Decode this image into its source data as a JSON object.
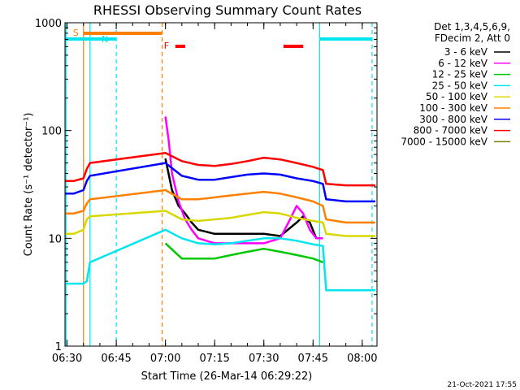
{
  "chart_data": {
    "type": "line",
    "title": "RHESSI Observing Summary Count Rates",
    "xlabel": "Start Time (26-Mar-14 06:29:22)",
    "ylabel": "Count Rate (s⁻¹ detector⁻¹)",
    "y_scale": "log",
    "ylim": [
      1,
      1000
    ],
    "xlim": [
      "06:29:22",
      "08:04:30"
    ],
    "x_ticks": [
      "06:30",
      "06:45",
      "07:00",
      "07:15",
      "07:30",
      "07:45",
      "08:00"
    ],
    "y_ticks": [
      "1",
      "10",
      "100",
      "1000"
    ],
    "grid": false,
    "legend_position": "right",
    "legend_header": [
      "Det 1,3,4,5,6,9,",
      "FDecim 2, Att 0"
    ],
    "series": [
      {
        "name": "3 - 6 keV",
        "color": "#000000",
        "points": [
          [
            "07:00",
            55
          ],
          [
            "07:02",
            28
          ],
          [
            "07:04",
            20
          ],
          [
            "07:06",
            17
          ],
          [
            "07:08",
            14
          ],
          [
            "07:10",
            12
          ],
          [
            "07:15",
            11
          ],
          [
            "07:20",
            11
          ],
          [
            "07:25",
            11
          ],
          [
            "07:30",
            11
          ],
          [
            "07:35",
            10.5
          ],
          [
            "07:40",
            14
          ],
          [
            "07:42",
            16
          ],
          [
            "07:44",
            14
          ],
          [
            "07:46",
            10
          ],
          [
            "07:48",
            10
          ]
        ]
      },
      {
        "name": "6 - 12 keV",
        "color": "#ff00ff",
        "points": [
          [
            "07:00",
            135
          ],
          [
            "07:01",
            80
          ],
          [
            "07:02",
            40
          ],
          [
            "07:04",
            22
          ],
          [
            "07:06",
            15
          ],
          [
            "07:08",
            12
          ],
          [
            "07:10",
            10
          ],
          [
            "07:15",
            9
          ],
          [
            "07:20",
            9
          ],
          [
            "07:25",
            9
          ],
          [
            "07:30",
            9
          ],
          [
            "07:35",
            10
          ],
          [
            "07:38",
            15
          ],
          [
            "07:40",
            20
          ],
          [
            "07:42",
            17
          ],
          [
            "07:44",
            12
          ],
          [
            "07:46",
            10
          ],
          [
            "07:48",
            10
          ]
        ]
      },
      {
        "name": "12 - 25 keV",
        "color": "#00c800",
        "points": [
          [
            "07:00",
            9
          ],
          [
            "07:05",
            6.5
          ],
          [
            "07:10",
            6.5
          ],
          [
            "07:15",
            6.5
          ],
          [
            "07:20",
            7
          ],
          [
            "07:25",
            7.5
          ],
          [
            "07:30",
            8
          ],
          [
            "07:35",
            7.5
          ],
          [
            "07:40",
            7
          ],
          [
            "07:45",
            6.5
          ],
          [
            "07:48",
            6
          ]
        ]
      },
      {
        "name": "25 - 50 keV",
        "color": "#00e5ee",
        "points": [
          [
            "06:29:30",
            3.8
          ],
          [
            "06:32",
            3.8
          ],
          [
            "06:35",
            3.8
          ],
          [
            "06:36",
            4
          ],
          [
            "06:37",
            6
          ],
          [
            "07:00",
            12
          ],
          [
            "07:05",
            10
          ],
          [
            "07:10",
            9
          ],
          [
            "07:15",
            8.8
          ],
          [
            "07:20",
            9
          ],
          [
            "07:25",
            9.5
          ],
          [
            "07:30",
            10
          ],
          [
            "07:35",
            10
          ],
          [
            "07:40",
            9.5
          ],
          [
            "07:45",
            8.8
          ],
          [
            "07:48",
            8.5
          ],
          [
            "07:49",
            3.3
          ],
          [
            "07:55",
            3.3
          ],
          [
            "08:00",
            3.3
          ],
          [
            "08:04",
            3.3
          ]
        ]
      },
      {
        "name": "50 - 100 keV",
        "color": "#d8d800",
        "points": [
          [
            "06:29:30",
            11
          ],
          [
            "06:32",
            11
          ],
          [
            "06:35",
            12
          ],
          [
            "06:36",
            15
          ],
          [
            "06:37",
            16
          ],
          [
            "07:00",
            18
          ],
          [
            "07:05",
            15
          ],
          [
            "07:10",
            14.5
          ],
          [
            "07:15",
            15
          ],
          [
            "07:20",
            15.5
          ],
          [
            "07:25",
            16.5
          ],
          [
            "07:30",
            17.5
          ],
          [
            "07:35",
            17
          ],
          [
            "07:40",
            15.5
          ],
          [
            "07:45",
            14.5
          ],
          [
            "07:48",
            14
          ],
          [
            "07:49",
            11
          ],
          [
            "07:55",
            10.5
          ],
          [
            "08:00",
            10.5
          ],
          [
            "08:04",
            10.5
          ]
        ]
      },
      {
        "name": "100 - 300 keV",
        "color": "#ff8000",
        "points": [
          [
            "06:29:30",
            17
          ],
          [
            "06:32",
            17
          ],
          [
            "06:35",
            18
          ],
          [
            "06:36",
            21
          ],
          [
            "06:37",
            23
          ],
          [
            "07:00",
            28
          ],
          [
            "07:05",
            23
          ],
          [
            "07:10",
            23
          ],
          [
            "07:15",
            24
          ],
          [
            "07:20",
            25
          ],
          [
            "07:25",
            26
          ],
          [
            "07:30",
            27
          ],
          [
            "07:35",
            26
          ],
          [
            "07:40",
            24
          ],
          [
            "07:45",
            22
          ],
          [
            "07:48",
            20
          ],
          [
            "07:49",
            15
          ],
          [
            "07:55",
            14
          ],
          [
            "08:00",
            14
          ],
          [
            "08:04",
            14
          ]
        ]
      },
      {
        "name": "300 - 800 keV",
        "color": "#0000ff",
        "points": [
          [
            "06:29:30",
            26
          ],
          [
            "06:32",
            26
          ],
          [
            "06:35",
            28
          ],
          [
            "06:36",
            34
          ],
          [
            "06:37",
            38
          ],
          [
            "07:00",
            50
          ],
          [
            "07:05",
            38
          ],
          [
            "07:10",
            35
          ],
          [
            "07:15",
            35
          ],
          [
            "07:20",
            37
          ],
          [
            "07:25",
            39
          ],
          [
            "07:30",
            40
          ],
          [
            "07:35",
            39
          ],
          [
            "07:40",
            36
          ],
          [
            "07:45",
            34
          ],
          [
            "07:48",
            32
          ],
          [
            "07:49",
            23
          ],
          [
            "07:55",
            22
          ],
          [
            "08:00",
            22
          ],
          [
            "08:04",
            22
          ]
        ]
      },
      {
        "name": "800 - 7000 keV",
        "color": "#ff0000",
        "points": [
          [
            "06:29:30",
            34
          ],
          [
            "06:32",
            34
          ],
          [
            "06:35",
            36
          ],
          [
            "06:36",
            44
          ],
          [
            "06:37",
            50
          ],
          [
            "07:00",
            62
          ],
          [
            "07:05",
            52
          ],
          [
            "07:10",
            48
          ],
          [
            "07:15",
            47
          ],
          [
            "07:20",
            49
          ],
          [
            "07:25",
            52
          ],
          [
            "07:30",
            56
          ],
          [
            "07:35",
            54
          ],
          [
            "07:40",
            50
          ],
          [
            "07:45",
            46
          ],
          [
            "07:48",
            43
          ],
          [
            "07:49",
            32
          ],
          [
            "07:55",
            31
          ],
          [
            "08:00",
            31
          ],
          [
            "08:04",
            31
          ]
        ]
      },
      {
        "name": "7000 - 15000 keV",
        "color": "#808000",
        "points": []
      }
    ],
    "status_bars": [
      {
        "label": "S",
        "color": "#ff8000",
        "start": "06:35",
        "end": "06:59"
      },
      {
        "label": "N",
        "color": "#00e5ee",
        "start": "06:29:22",
        "end": "06:45"
      },
      {
        "label": "F",
        "color": "#ff0000",
        "start": "07:03",
        "end": "07:06"
      },
      {
        "label": "",
        "color": "#ff0000",
        "start": "07:36",
        "end": "07:42"
      },
      {
        "label": "",
        "color": "#00e5ee",
        "start": "07:47",
        "end": "08:03"
      }
    ],
    "vertical_lines": [
      {
        "time": "06:29:40",
        "color": "#00e5ee",
        "style": "solid"
      },
      {
        "time": "06:35",
        "color": "#ff8000",
        "style": "solid"
      },
      {
        "time": "06:37",
        "color": "#00e5ee",
        "style": "solid"
      },
      {
        "time": "06:45",
        "color": "#00e5ee",
        "style": "dashed"
      },
      {
        "time": "06:59",
        "color": "#ff8000",
        "style": "dashed"
      },
      {
        "time": "07:47",
        "color": "#00e5ee",
        "style": "solid"
      },
      {
        "time": "08:03",
        "color": "#00e5ee",
        "style": "dashed"
      }
    ],
    "timestamp": "21-Oct-2021 17:55"
  }
}
